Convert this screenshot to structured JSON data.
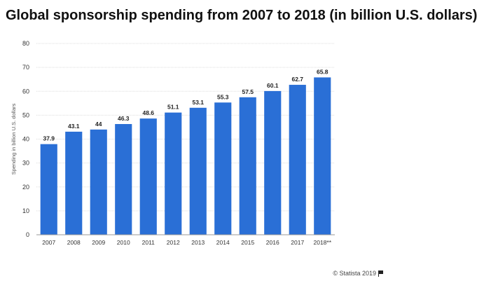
{
  "title": "Global sponsorship spending from 2007 to 2018 (in billion U.S. dollars)",
  "copyright": {
    "text": "© Statista 2019",
    "icon": "flag-icon"
  },
  "colors": {
    "bar": "#2a6fd6",
    "grid": "#dddddd",
    "axis": "#999999",
    "text": "#333333"
  },
  "chart_data": {
    "type": "bar",
    "categories": [
      "2007",
      "2008",
      "2009",
      "2010",
      "2011",
      "2012",
      "2013",
      "2014",
      "2015",
      "2016",
      "2017",
      "2018**"
    ],
    "values": [
      37.9,
      43.1,
      44,
      46.3,
      48.6,
      51.1,
      53.1,
      55.3,
      57.5,
      60.1,
      62.7,
      65.8
    ],
    "value_labels": [
      "37.9",
      "43.1",
      "44",
      "46.3",
      "48.6",
      "51.1",
      "53.1",
      "55.3",
      "57.5",
      "60.1",
      "62.7",
      "65.8"
    ],
    "ylabel": "Spending in billion U.S. dollars",
    "yticks": [
      "0",
      "10",
      "20",
      "30",
      "40",
      "50",
      "60",
      "70",
      "80"
    ],
    "ylim": [
      0,
      80
    ],
    "grid": true,
    "legend": "none"
  }
}
